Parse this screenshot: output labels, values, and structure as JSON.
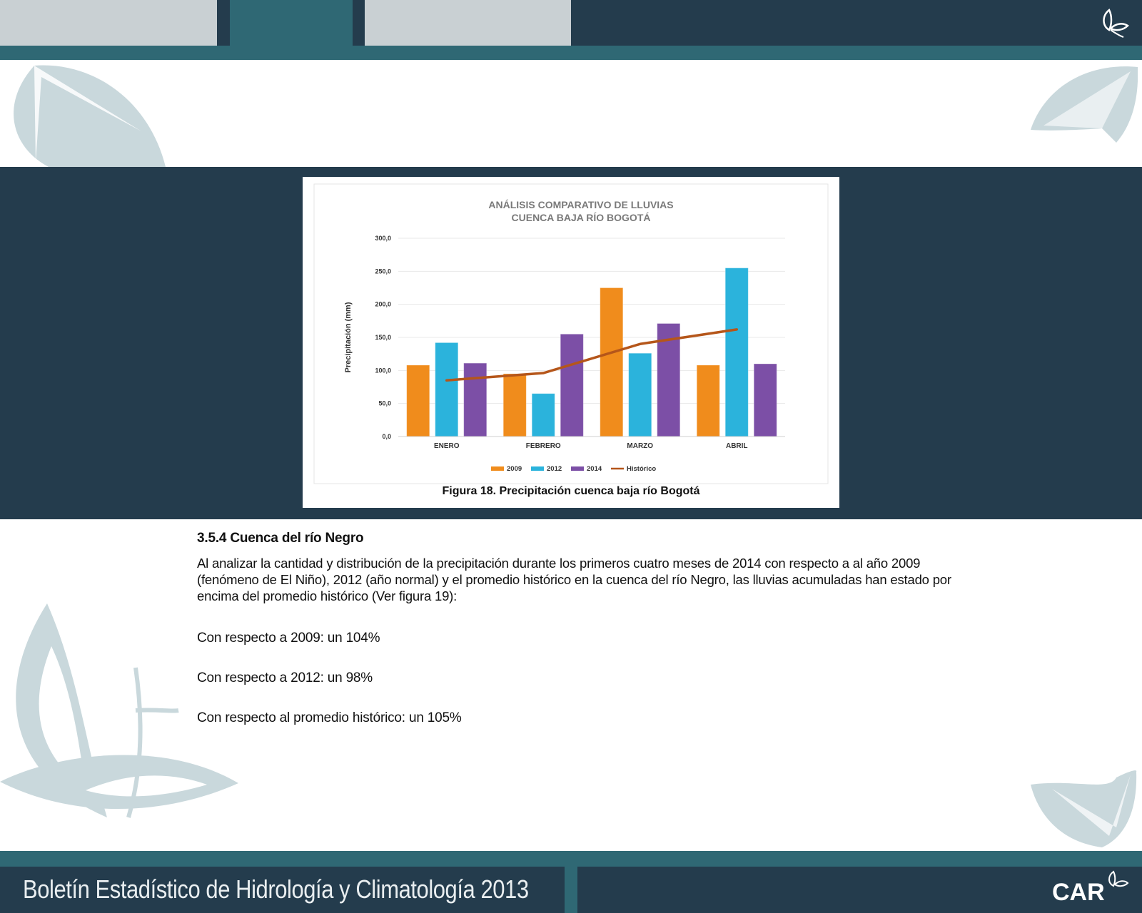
{
  "chart_data": {
    "type": "bar",
    "title": "ANÁLISIS COMPARATIVO DE LLUVIAS",
    "subtitle": "CUENCA BAJA RÍO BOGOTÁ",
    "xlabel": "",
    "ylabel": "Precipitación  (mm)",
    "ylim": [
      0,
      300
    ],
    "yticks": [
      "0,0",
      "50,0",
      "100,0",
      "150,0",
      "200,0",
      "250,0",
      "300,0"
    ],
    "categories": [
      "ENERO",
      "FEBRERO",
      "MARZO",
      "ABRIL"
    ],
    "series": [
      {
        "name": "2009",
        "kind": "bar",
        "color": "#f08c1c",
        "values": [
          108,
          95,
          225,
          108
        ]
      },
      {
        "name": "2012",
        "kind": "bar",
        "color": "#2bb3dc",
        "values": [
          142,
          65,
          126,
          255
        ]
      },
      {
        "name": "2014",
        "kind": "bar",
        "color": "#7c4fa6",
        "values": [
          111,
          155,
          171,
          110
        ]
      },
      {
        "name": "Histórico",
        "kind": "line",
        "color": "#b5561a",
        "values": [
          85,
          96,
          140,
          162
        ]
      }
    ],
    "legend": "bottom",
    "grid": true
  },
  "figure": {
    "caption": "Figura 18. Precipitación cuenca baja río Bogotá"
  },
  "section": {
    "title": "3.5.4 Cuenca del río Negro",
    "paragraph": "Al analizar la cantidad y distribución de la precipitación durante los primeros cuatro meses de 2014 con respecto a al año 2009 (fenómeno de El Niño), 2012 (año normal) y el promedio histórico en la cuenca del río Negro, las lluvias acumuladas han estado por encima del promedio histórico (Ver figura 19):",
    "stats": [
      "Con respecto a 2009: un 104%",
      "Con respecto a 2012: un 98%",
      "Con respecto al promedio histórico: un 105%"
    ]
  },
  "footer": {
    "title": "Boletín Estadístico de Hidrología y Climatología 2013"
  },
  "logos": {
    "footer_logo": "CAR"
  },
  "colors": {
    "dark": "#243c4d",
    "teal": "#2f6874",
    "light": "#c9d0d3",
    "leaf": "#c9d8dc"
  }
}
